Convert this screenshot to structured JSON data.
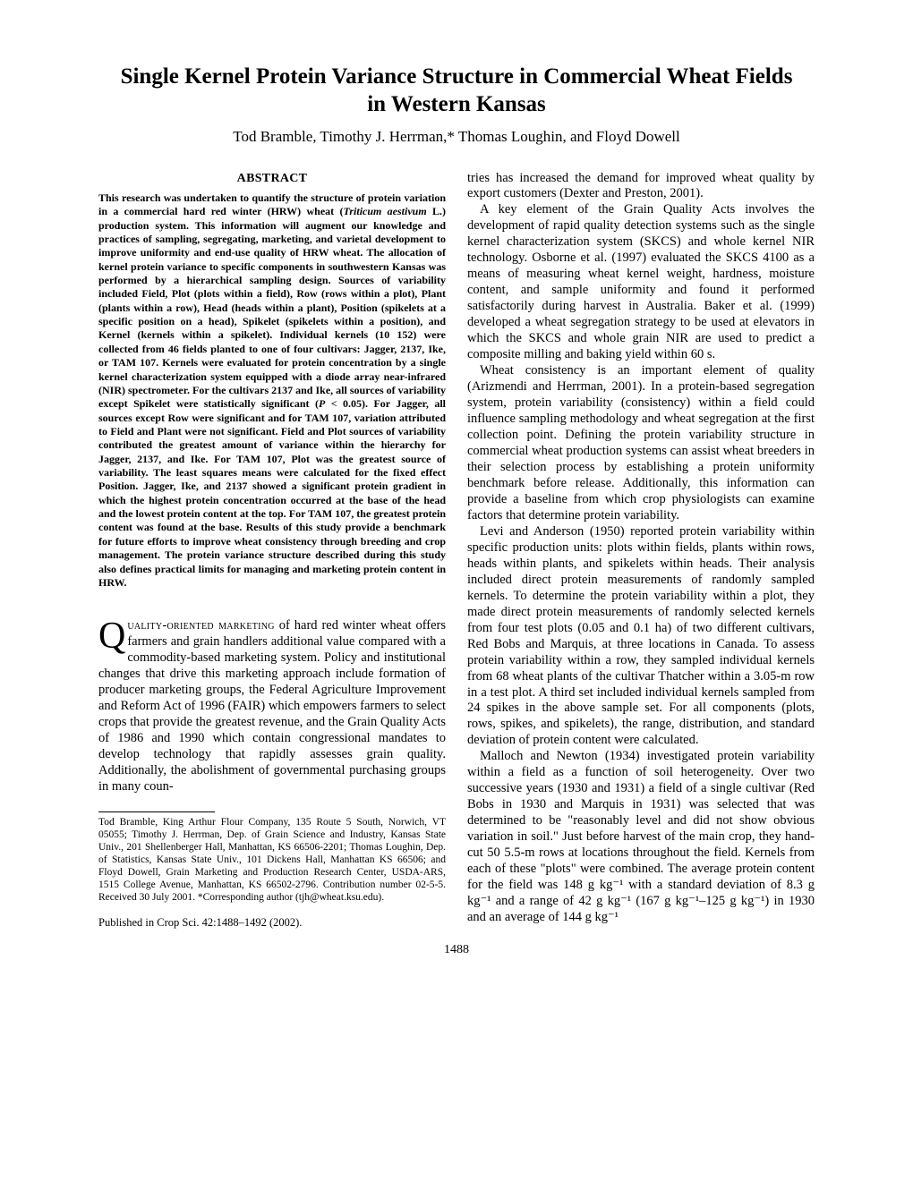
{
  "title_line1": "Single Kernel Protein Variance Structure in Commercial Wheat Fields",
  "title_line2": "in Western Kansas",
  "authors": "Tod Bramble, Timothy J. Herrman,* Thomas Loughin, and Floyd Dowell",
  "abstract_heading": "ABSTRACT",
  "abstract_text_1": "This research was undertaken to quantify the structure of protein variation in a commercial hard red winter (HRW) wheat (",
  "abstract_italic_1": "Triticum aestivum",
  "abstract_text_2": " L.) production system. This information will augment our knowledge and practices of sampling, segregating, marketing, and varietal development to improve uniformity and end-use quality of HRW wheat. The allocation of kernel protein variance to specific components in southwestern Kansas was performed by a hierarchical sampling design. Sources of variability included Field, Plot (plots within a field), Row (rows within a plot), Plant (plants within a row), Head (heads within a plant), Position (spikelets at a specific position on a head), Spikelet (spikelets within a position), and Kernel (kernels within a spikelet). Individual kernels (10 152) were collected from 46 fields planted to one of four cultivars: Jagger, 2137, Ike, or TAM 107. Kernels were evaluated for protein concentration by a single kernel characterization system equipped with a diode array near-infrared (NIR) spectrometer. For the cultivars 2137 and Ike, all sources of variability except Spikelet were statistically significant (",
  "abstract_italic_2": "P",
  "abstract_text_3": " < 0.05). For Jagger, all sources except Row were significant and for TAM 107, variation attributed to Field and Plant were not significant. Field and Plot sources of variability contributed the greatest amount of variance within the hierarchy for Jagger, 2137, and Ike. For TAM 107, Plot was the greatest source of variability. The least squares means were calculated for the fixed effect Position. Jagger, Ike, and 2137 showed a significant protein gradient in which the highest protein concentration occurred at the base of the head and the lowest protein content at the top. For TAM 107, the greatest protein content was found at the base. Results of this study provide a benchmark for future efforts to improve wheat consistency through breeding and crop management. The protein variance structure described during this study also defines practical limits for managing and marketing protein content in HRW.",
  "body_dropcap": "Q",
  "body_smallcaps": "uality-oriented marketing",
  "body_p1_rest": " of hard red winter wheat offers farmers and grain handlers additional value compared with a commodity-based marketing system. Policy and institutional changes that drive this marketing approach include formation of producer marketing groups, the Federal Agriculture Improvement and Reform Act of 1996 (FAIR) which empowers farmers to select crops that provide the greatest revenue, and the Grain Quality Acts of 1986 and 1990 which contain congressional mandates to develop technology that rapidly assesses grain quality. Additionally, the abolishment of governmental purchasing groups in many coun-",
  "footnote": "Tod Bramble, King Arthur Flour Company, 135 Route 5 South, Norwich, VT 05055; Timothy J. Herrman, Dep. of Grain Science and Industry, Kansas State Univ., 201 Shellenberger Hall, Manhattan, KS 66506-2201; Thomas Loughin, Dep. of Statistics, Kansas State Univ., 101 Dickens Hall, Manhattan KS 66506; and Floyd Dowell, Grain Marketing and Production Research Center, USDA-ARS, 1515 College Avenue, Manhattan, KS 66502-2796. Contribution number 02-5-5. Received 30 July 2001. *Corresponding author (tjh@wheat.ksu.edu).",
  "pub_line": "Published in Crop Sci. 42:1488–1492 (2002).",
  "right_p1": "tries has increased the demand for improved wheat quality by export customers (Dexter and Preston, 2001).",
  "right_p2": "A key element of the Grain Quality Acts involves the development of rapid quality detection systems such as the single kernel characterization system (SKCS) and whole kernel NIR technology. Osborne et al. (1997) evaluated the SKCS 4100 as a means of measuring wheat kernel weight, hardness, moisture content, and sample uniformity and found it performed satisfactorily during harvest in Australia. Baker et al. (1999) developed a wheat segregation strategy to be used at elevators in which the SKCS and whole grain NIR are used to predict a composite milling and baking yield within 60 s.",
  "right_p3": "Wheat consistency is an important element of quality (Arizmendi and Herrman, 2001). In a protein-based segregation system, protein variability (consistency) within a field could influence sampling methodology and wheat segregation at the first collection point. Defining the protein variability structure in commercial wheat production systems can assist wheat breeders in their selection process by establishing a protein uniformity benchmark before release. Additionally, this information can provide a baseline from which crop physiologists can examine factors that determine protein variability.",
  "right_p4": "Levi and Anderson (1950) reported protein variability within specific production units: plots within fields, plants within rows, heads within plants, and spikelets within heads. Their analysis included direct protein measurements of randomly sampled kernels. To determine the protein variability within a plot, they made direct protein measurements of randomly selected kernels from four test plots (0.05 and 0.1 ha) of two different cultivars, Red Bobs and Marquis, at three locations in Canada. To assess protein variability within a row, they sampled individual kernels from 68 wheat plants of the cultivar Thatcher within a 3.05-m row in a test plot. A third set included individual kernels sampled from 24 spikes in the above sample set. For all components (plots, rows, spikes, and spikelets), the range, distribution, and standard deviation of protein content were calculated.",
  "right_p5": "Malloch and Newton (1934) investigated protein variability within a field as a function of soil heterogeneity. Over two successive years (1930 and 1931) a field of a single cultivar (Red Bobs in 1930 and Marquis in 1931) was selected that was determined to be \"reasonably level and did not show obvious variation in soil.\" Just before harvest of the main crop, they hand-cut 50 5.5-m rows at locations throughout the field. Kernels from each of these \"plots\" were combined. The average protein content for the field was 148 g kg⁻¹ with a standard deviation of 8.3 g kg⁻¹ and a range of 42 g kg⁻¹ (167 g kg⁻¹–125 g kg⁻¹) in 1930 and an average of 144 g kg⁻¹",
  "pagenum": "1488"
}
